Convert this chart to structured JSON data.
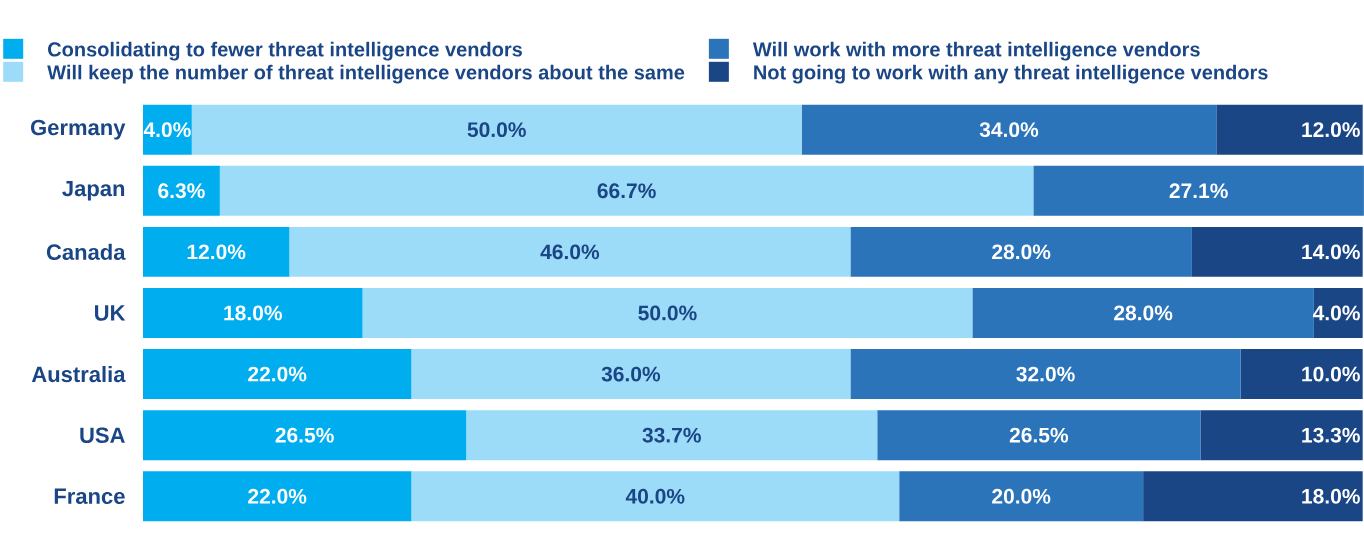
{
  "chart_data": {
    "type": "bar",
    "orientation": "horizontal",
    "stacked": true,
    "legend": "top",
    "categories": [
      "Germany",
      "Japan",
      "Canada",
      "UK",
      "Australia",
      "USA",
      "France"
    ],
    "series": [
      {
        "name": "Consolidating to fewer threat intelligence vendors",
        "color": "#00aeef",
        "values": [
          4.0,
          6.3,
          12.0,
          18.0,
          22.0,
          26.5,
          22.0
        ],
        "value_labels": [
          "4.0%",
          "6.3%",
          "12.0%",
          "18.0%",
          "22.0%",
          "26.5%",
          "22.0%"
        ]
      },
      {
        "name": "Will keep the number of threat intelligence vendors about the same",
        "color": "#9ddcf8",
        "values": [
          50.0,
          66.7,
          46.0,
          50.0,
          36.0,
          33.7,
          40.0
        ],
        "value_labels": [
          "50.0%",
          "66.7%",
          "46.0%",
          "50.0%",
          "36.0%",
          "33.7%",
          "40.0%"
        ]
      },
      {
        "name": "Will work with more threat intelligence vendors",
        "color": "#2b74ba",
        "values": [
          34.0,
          27.1,
          28.0,
          28.0,
          32.0,
          26.5,
          20.0
        ],
        "value_labels": [
          "34.0%",
          "27.1%",
          "28.0%",
          "28.0%",
          "32.0%",
          "26.5%",
          "20.0%"
        ]
      },
      {
        "name": "Not going to work with any threat intelligence vendors",
        "color": "#1b4686",
        "values": [
          12.0,
          null,
          14.0,
          4.0,
          10.0,
          13.3,
          18.0
        ],
        "value_labels": [
          "12.0%",
          null,
          "14.0%",
          "4.0%",
          "10.0%",
          "13.3%",
          "18.0%"
        ]
      }
    ]
  }
}
